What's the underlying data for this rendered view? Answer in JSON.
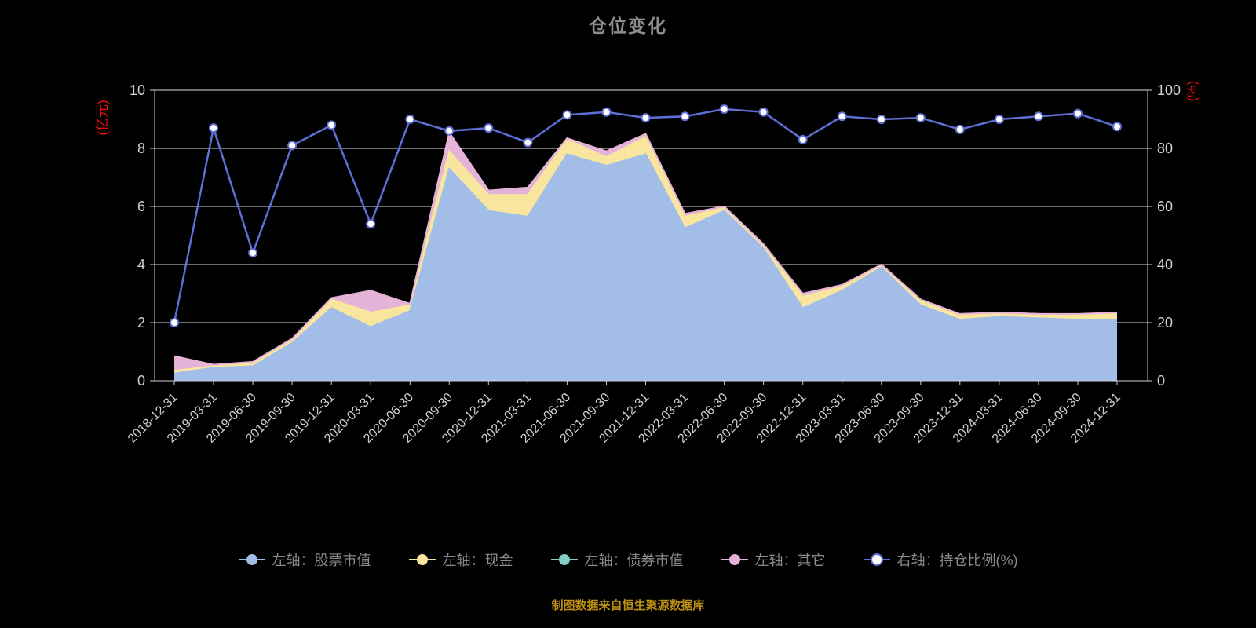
{
  "title": "仓位变化",
  "footer_note": "制图数据来自恒生聚源数据库",
  "left_axis_unit": "(亿元)",
  "right_axis_unit": "(%)",
  "colors": {
    "background": "#000000",
    "title": "#8d8d8d",
    "grid": "#e0e0e0",
    "axis": "#d0d0d0",
    "tick_text": "#d0d0d0",
    "unit_text": "#ee1111",
    "legend_text": "#8a8a8a",
    "footer_text": "#bd8f12",
    "line_series": "#5f6fd8"
  },
  "legend": [
    {
      "label": "左轴：股票市值",
      "color": "#a2bee8",
      "marker_fill": "#a2bee8"
    },
    {
      "label": "左轴：现金",
      "color": "#f8e59e",
      "marker_fill": "#f8e59e"
    },
    {
      "label": "左轴：债券市值",
      "color": "#82cfc6",
      "marker_fill": "#82cfc6"
    },
    {
      "label": "左轴：其它",
      "color": "#e5b2d8",
      "marker_fill": "#e5b2d8"
    },
    {
      "label": "右轴：持仓比例(%)",
      "color": "#5f6fd8",
      "marker_fill": "#ffffff"
    }
  ],
  "chart_data": {
    "type": "area+line",
    "title": "仓位变化",
    "grid": true,
    "legend_position": "bottom",
    "categories": [
      "2018-12-31",
      "2019-03-31",
      "2019-06-30",
      "2019-09-30",
      "2019-12-31",
      "2020-03-31",
      "2020-06-30",
      "2020-09-30",
      "2020-12-31",
      "2021-03-31",
      "2021-06-30",
      "2021-09-30",
      "2021-12-31",
      "2022-03-31",
      "2022-06-30",
      "2022-09-30",
      "2022-12-31",
      "2023-03-31",
      "2023-06-30",
      "2023-09-30",
      "2023-12-31",
      "2024-03-31",
      "2024-06-30",
      "2024-09-30",
      "2024-12-31"
    ],
    "series": [
      {
        "name": "股票市值",
        "axis": "left",
        "type": "area",
        "stack": true,
        "color": "#a2bee8",
        "values": [
          0.25,
          0.45,
          0.5,
          1.3,
          2.5,
          1.85,
          2.4,
          7.3,
          5.85,
          5.65,
          7.8,
          7.4,
          7.8,
          5.25,
          5.85,
          4.55,
          2.5,
          3.1,
          3.9,
          2.6,
          2.1,
          2.2,
          2.15,
          2.1,
          2.1
        ]
      },
      {
        "name": "现金",
        "axis": "left",
        "type": "area",
        "stack": true,
        "color": "#f8e59e",
        "values": [
          0.1,
          0.05,
          0.1,
          0.1,
          0.3,
          0.5,
          0.2,
          0.6,
          0.55,
          0.75,
          0.5,
          0.3,
          0.6,
          0.4,
          0.1,
          0.1,
          0.4,
          0.15,
          0.1,
          0.15,
          0.15,
          0.15,
          0.15,
          0.15,
          0.25
        ]
      },
      {
        "name": "债券市值",
        "axis": "left",
        "type": "area",
        "stack": true,
        "color": "#82cfc6",
        "values": [
          0,
          0,
          0,
          0,
          0,
          0,
          0,
          0,
          0,
          0,
          0,
          0,
          0,
          0,
          0,
          0,
          0,
          0,
          0,
          0,
          0,
          0,
          0,
          0,
          0
        ]
      },
      {
        "name": "其它",
        "axis": "left",
        "type": "area",
        "stack": true,
        "color": "#e5b2d8",
        "values": [
          0.5,
          0.05,
          0.05,
          0.05,
          0.05,
          0.75,
          0.05,
          0.65,
          0.15,
          0.25,
          0.05,
          0.2,
          0.1,
          0.1,
          0.05,
          0.05,
          0.1,
          0.05,
          0,
          0.05,
          0.05,
          0,
          0,
          0.05,
          0
        ]
      },
      {
        "name": "持仓比例(%)",
        "axis": "right",
        "type": "line",
        "color": "#5f6fd8",
        "values": [
          20,
          87,
          44,
          81,
          88,
          54,
          90,
          86,
          87,
          82,
          91.5,
          92.5,
          90.5,
          91,
          93.5,
          92.5,
          83,
          91,
          90,
          90.5,
          86.5,
          90,
          91,
          92,
          87.5
        ]
      }
    ],
    "xlabel": "",
    "ylabel_left": "(亿元)",
    "ylabel_right": "(%)",
    "left_ylim": [
      0,
      10
    ],
    "right_ylim": [
      0,
      100
    ],
    "left_ticks": [
      0,
      2,
      4,
      6,
      8,
      10
    ],
    "right_ticks": [
      0,
      20,
      40,
      60,
      80,
      100
    ]
  }
}
